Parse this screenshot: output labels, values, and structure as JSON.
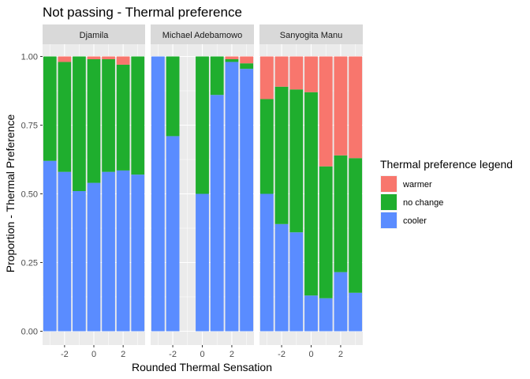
{
  "chart_data": {
    "type": "bar",
    "stacked": true,
    "title": "Not passing - Thermal preference",
    "xlabel": "Rounded Thermal Sensation",
    "ylabel": "Proportion - Thermal Preference",
    "ylim": [
      0,
      1
    ],
    "y_ticks": [
      "0.00",
      "0.25",
      "0.50",
      "0.75",
      "1.00"
    ],
    "x_range": [
      -3.5,
      3.5
    ],
    "x_ticks": [
      -2,
      0,
      2
    ],
    "legend": {
      "title": "Thermal preference legend",
      "placement": "right",
      "entries": [
        {
          "key": "warmer",
          "label": "warmer",
          "color": "#F8766D"
        },
        {
          "key": "no_change",
          "label": "no change",
          "color": "#1FAE2E"
        },
        {
          "key": "cooler",
          "label": "cooler",
          "color": "#5A8CFF"
        }
      ]
    },
    "panel_background": "#EBEBEB",
    "strip_background": "#D9D9D9",
    "grid": true,
    "facets": [
      {
        "name": "Djamila",
        "bars": [
          {
            "x": -3,
            "cooler": 0.62,
            "no_change": 0.38,
            "warmer": 0.0
          },
          {
            "x": -2,
            "cooler": 0.58,
            "no_change": 0.4,
            "warmer": 0.02
          },
          {
            "x": -1,
            "cooler": 0.51,
            "no_change": 0.49,
            "warmer": 0.0
          },
          {
            "x": 0,
            "cooler": 0.54,
            "no_change": 0.45,
            "warmer": 0.01
          },
          {
            "x": 1,
            "cooler": 0.58,
            "no_change": 0.41,
            "warmer": 0.01
          },
          {
            "x": 2,
            "cooler": 0.585,
            "no_change": 0.385,
            "warmer": 0.03
          },
          {
            "x": 3,
            "cooler": 0.57,
            "no_change": 0.43,
            "warmer": 0.0
          }
        ]
      },
      {
        "name": "Michael Adebamowo",
        "bars": [
          {
            "x": -3,
            "cooler": 1.0,
            "no_change": 0.0,
            "warmer": 0.0
          },
          {
            "x": -2,
            "cooler": 0.71,
            "no_change": 0.29,
            "warmer": 0.0
          },
          {
            "x": 0,
            "cooler": 0.5,
            "no_change": 0.5,
            "warmer": 0.0
          },
          {
            "x": 1,
            "cooler": 0.86,
            "no_change": 0.14,
            "warmer": 0.0
          },
          {
            "x": 2,
            "cooler": 0.98,
            "no_change": 0.01,
            "warmer": 0.01
          },
          {
            "x": 3,
            "cooler": 0.955,
            "no_change": 0.02,
            "warmer": 0.025
          }
        ]
      },
      {
        "name": "Sanyogita Manu",
        "bars": [
          {
            "x": -3,
            "cooler": 0.5,
            "no_change": 0.345,
            "warmer": 0.155
          },
          {
            "x": -2,
            "cooler": 0.39,
            "no_change": 0.5,
            "warmer": 0.11
          },
          {
            "x": -1,
            "cooler": 0.36,
            "no_change": 0.52,
            "warmer": 0.12
          },
          {
            "x": 0,
            "cooler": 0.13,
            "no_change": 0.74,
            "warmer": 0.13
          },
          {
            "x": 1,
            "cooler": 0.12,
            "no_change": 0.48,
            "warmer": 0.4
          },
          {
            "x": 2,
            "cooler": 0.215,
            "no_change": 0.425,
            "warmer": 0.36
          },
          {
            "x": 3,
            "cooler": 0.14,
            "no_change": 0.49,
            "warmer": 0.37
          }
        ]
      }
    ]
  }
}
